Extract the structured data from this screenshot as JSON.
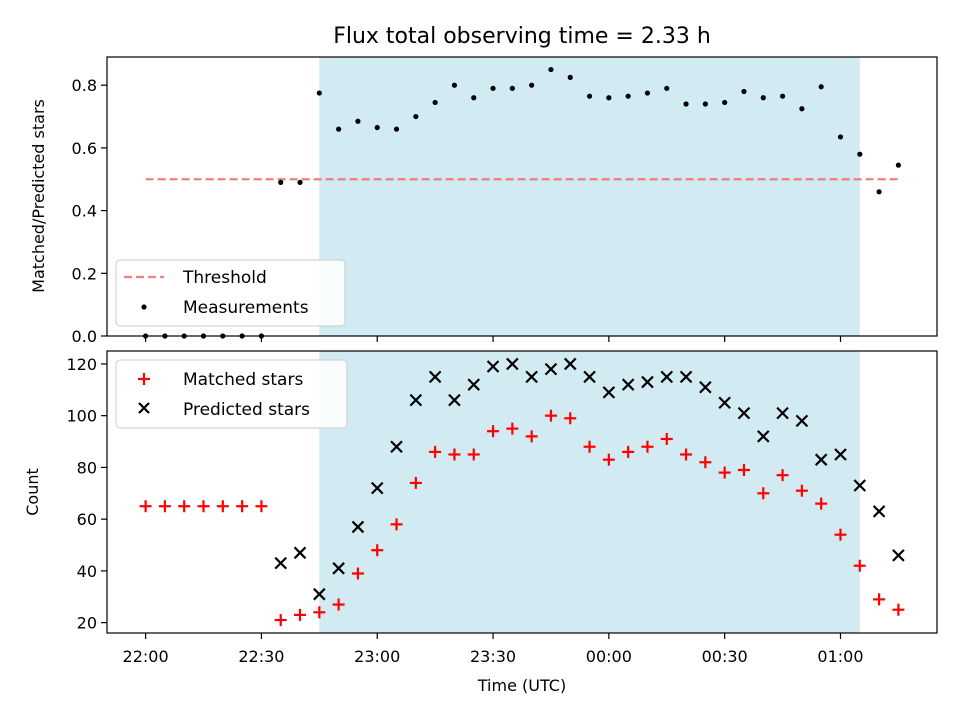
{
  "figure": {
    "title": "Flux total observing time = 2.33 h",
    "xlabel": "Time (UTC)"
  },
  "colors": {
    "shade": "#add8e6",
    "threshold": "#f08080",
    "measurement": "#000000",
    "matched": "#ff0000",
    "predicted": "#000000"
  },
  "chart_data": [
    {
      "type": "scatter",
      "title": "Flux total observing time = 2.33 h",
      "ylabel": "Matched/Predicted stars",
      "xlabel": "Time (UTC)",
      "x_unit": "minutes after 22:00 UTC",
      "xlim": [
        -10,
        205
      ],
      "ylim": [
        0,
        0.89
      ],
      "y_ticks": [
        "0.0",
        "0.2",
        "0.4",
        "0.6",
        "0.8"
      ],
      "shaded_region": [
        45,
        185
      ],
      "legend_position": "lower-left",
      "threshold": {
        "name": "Threshold",
        "value": 0.5,
        "x_range": [
          0,
          195
        ],
        "style": "dashed"
      },
      "series": [
        {
          "name": "Measurements",
          "x": [
            0,
            5,
            10,
            15,
            20,
            25,
            30,
            35,
            40,
            45,
            50,
            55,
            60,
            65,
            70,
            75,
            80,
            85,
            90,
            95,
            100,
            105,
            110,
            115,
            120,
            125,
            130,
            135,
            140,
            145,
            150,
            155,
            160,
            165,
            170,
            175,
            180,
            185,
            190,
            195
          ],
          "y": [
            0,
            0,
            0,
            0,
            0,
            0,
            0,
            0.49,
            0.49,
            0.775,
            0.66,
            0.685,
            0.665,
            0.66,
            0.7,
            0.745,
            0.8,
            0.76,
            0.79,
            0.79,
            0.8,
            0.85,
            0.825,
            0.765,
            0.76,
            0.765,
            0.775,
            0.79,
            0.74,
            0.74,
            0.745,
            0.78,
            0.76,
            0.765,
            0.725,
            0.795,
            0.635,
            0.58,
            0.46,
            0.545
          ]
        }
      ]
    },
    {
      "type": "scatter",
      "ylabel": "Count",
      "xlabel": "Time (UTC)",
      "x_unit": "minutes after 22:00 UTC",
      "xlim": [
        -10,
        205
      ],
      "ylim": [
        16,
        125
      ],
      "y_ticks": [
        "20",
        "40",
        "60",
        "80",
        "100",
        "120"
      ],
      "x_ticks": [
        "22:00",
        "22:30",
        "23:00",
        "23:30",
        "00:00",
        "00:30",
        "01:00"
      ],
      "shaded_region": [
        45,
        185
      ],
      "legend_position": "upper-left",
      "series": [
        {
          "name": "Matched stars",
          "marker": "plus",
          "x": [
            0,
            5,
            10,
            15,
            20,
            25,
            30,
            35,
            40,
            45,
            50,
            55,
            60,
            65,
            70,
            75,
            80,
            85,
            90,
            95,
            100,
            105,
            110,
            115,
            120,
            125,
            130,
            135,
            140,
            145,
            150,
            155,
            160,
            165,
            170,
            175,
            180,
            185,
            190,
            195
          ],
          "y": [
            65,
            65,
            65,
            65,
            65,
            65,
            65,
            21,
            23,
            24,
            27,
            39,
            48,
            58,
            74,
            86,
            85,
            85,
            94,
            95,
            92,
            100,
            99,
            88,
            83,
            86,
            88,
            91,
            85,
            82,
            78,
            79,
            70,
            77,
            71,
            66,
            54,
            42,
            29,
            25
          ]
        },
        {
          "name": "Predicted stars",
          "marker": "x",
          "x": [
            35,
            40,
            45,
            50,
            55,
            60,
            65,
            70,
            75,
            80,
            85,
            90,
            95,
            100,
            105,
            110,
            115,
            120,
            125,
            130,
            135,
            140,
            145,
            150,
            155,
            160,
            165,
            170,
            175,
            180,
            185,
            190,
            195
          ],
          "y": [
            43,
            47,
            31,
            41,
            57,
            72,
            88,
            106,
            115,
            106,
            112,
            119,
            120,
            115,
            118,
            120,
            115,
            109,
            112,
            113,
            115,
            115,
            111,
            105,
            101,
            92,
            101,
            98,
            83,
            85,
            73,
            63,
            46
          ]
        }
      ]
    }
  ]
}
